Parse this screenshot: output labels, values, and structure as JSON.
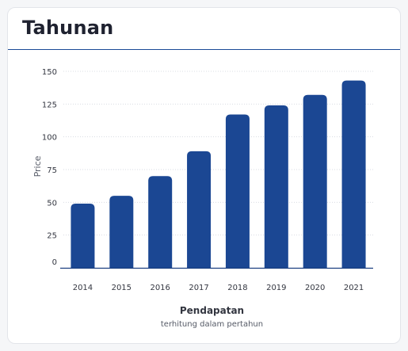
{
  "card": {
    "title": "Tahunan"
  },
  "colors": {
    "bar": "#1b4793",
    "header_rule": "#1b4a97",
    "grid": "#d9dce3",
    "axis": "#1b3f80"
  },
  "chart_data": {
    "type": "bar",
    "categories": [
      "2014",
      "2015",
      "2016",
      "2017",
      "2018",
      "2019",
      "2020",
      "2021"
    ],
    "values": [
      49,
      55,
      70,
      89,
      117,
      124,
      132,
      143
    ],
    "ylabel": "Price",
    "xlabel": "Pendapatan",
    "xsublabel": "terhitung dalam pertahun",
    "ylim": [
      0,
      150
    ],
    "yticks": [
      0,
      25,
      50,
      75,
      100,
      125,
      150
    ],
    "grid": true,
    "legend": "none"
  }
}
